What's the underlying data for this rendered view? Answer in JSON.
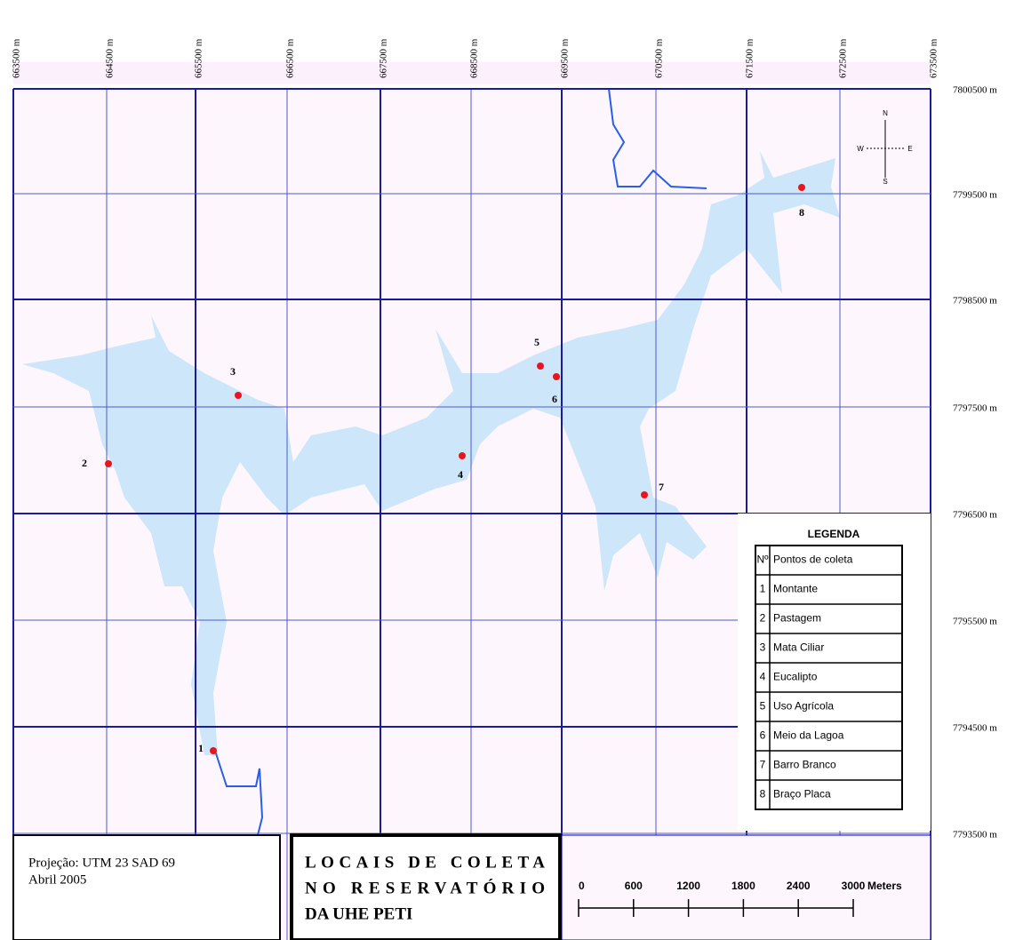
{
  "eastings": [
    "663500 m",
    "664500 m",
    "665500 m",
    "666500 m",
    "667500 m",
    "668500 m",
    "669500 m",
    "670500 m",
    "671500 m",
    "672500 m",
    "673500 m"
  ],
  "northings": [
    "7800500 m",
    "7799500 m",
    "7798500 m",
    "7797500 m",
    "7796500 m",
    "7795500 m",
    "7794500 m",
    "7793500 m"
  ],
  "compass": {
    "n": "N",
    "s": "S",
    "e": "E",
    "w": "W"
  },
  "points": [
    "1",
    "2",
    "3",
    "4",
    "5",
    "6",
    "7",
    "8"
  ],
  "legend": {
    "title": "LEGENDA",
    "header": [
      "Nº",
      "Pontos de coleta"
    ],
    "rows": [
      [
        "1",
        "Montante"
      ],
      [
        "2",
        "Pastagem"
      ],
      [
        "3",
        "Mata Ciliar"
      ],
      [
        "4",
        "Eucalipto"
      ],
      [
        "5",
        "Uso Agrícola"
      ],
      [
        "6",
        "Meio da Lagoa"
      ],
      [
        "7",
        "Barro Branco"
      ],
      [
        "8",
        "Braço Placa"
      ]
    ]
  },
  "info": {
    "projection": "Projeção: UTM 23 SAD 69",
    "date": "Abril 2005"
  },
  "title": [
    "LOCAIS DE COLETA",
    "NO RESERVATÓRIO",
    "DA UHE PETI"
  ],
  "scale_bar": {
    "labels": [
      "0",
      "600",
      "1200",
      "1800",
      "2400",
      "3000"
    ],
    "unit": "Meters"
  }
}
